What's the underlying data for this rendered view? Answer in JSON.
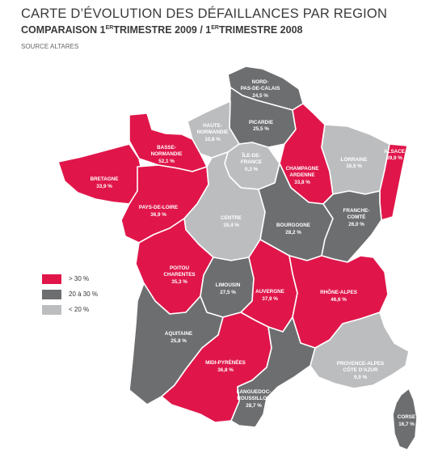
{
  "title": "CARTE D’ÉVOLUTION DES DÉFAILLANCES PAR REGION",
  "subtitle": {
    "prefix": "COMPARAISON 1",
    "sup1": "ER",
    "middle": "TRIMESTRE 2009 / 1",
    "sup2": "ER",
    "suffix": "TRIMESTRE 2008"
  },
  "source": "SOURCE ALTARES",
  "colors": {
    "high": "#e0164a",
    "mid": "#6d6e70",
    "low": "#bcbdbf",
    "border": "#ffffff"
  },
  "legend": [
    {
      "label": "> 30 %",
      "color": "#e0164a"
    },
    {
      "label": "20 à 30 %",
      "color": "#6d6e70"
    },
    {
      "label": "< 20 %",
      "color": "#bcbdbf"
    }
  ],
  "regions": {
    "nord": {
      "name1": "NORD-",
      "name2": "PAS-DE-CALAIS",
      "value": "24,5 %"
    },
    "picardie": {
      "name1": "PICARDIE",
      "value": "25,5 %"
    },
    "haute_normandie": {
      "name1": "HAUTE-",
      "name2": "NORMANDIE",
      "value": "10,8 %"
    },
    "basse_normandie": {
      "name1": "BASSE-",
      "name2": "NORMANDIE",
      "value": "52,1 %"
    },
    "bretagne": {
      "name1": "BRETAGNE",
      "value": "33,9 %"
    },
    "pays_de_loire": {
      "name1": "PAYS-DE-LOIRE",
      "value": "36,9 %"
    },
    "ile_de_france": {
      "name1": "ÎLE-DE-",
      "name2": "FRANCE",
      "value": "0,3 %"
    },
    "champagne": {
      "name1": "CHAMPAGNE",
      "name2": "ARDENNE",
      "value": "33,8 %"
    },
    "lorraine": {
      "name1": "LORRAINE",
      "value": "16,5 %"
    },
    "alsace": {
      "name1": "ALSACE",
      "value": "39,9 %"
    },
    "centre": {
      "name1": "CENTRE",
      "value": "15,4 %"
    },
    "bourgogne": {
      "name1": "BOURGOGNE",
      "value": "28,2 %"
    },
    "franche_comte": {
      "name1": "FRANCHE-",
      "name2": "COMTÉ",
      "value": "26,0 %"
    },
    "poitou": {
      "name1": "POITOU",
      "name2": "CHARENTES",
      "value": "35,3 %"
    },
    "limousin": {
      "name1": "LIMOUSIN",
      "value": "27,5 %"
    },
    "auvergne": {
      "name1": "AUVERGNE",
      "value": "37,9 %"
    },
    "rhone_alpes": {
      "name1": "RHÔNE-ALPES",
      "value": "46,6 %"
    },
    "aquitaine": {
      "name1": "AQUITAINE",
      "value": "25,8 %"
    },
    "midi_pyrenees": {
      "name1": "MIDI-PYRÉNÉES",
      "value": "36,8 %"
    },
    "languedoc": {
      "name1": "LANGUEDOC-",
      "name2": "ROUSSILLON",
      "value": "28,7 %"
    },
    "paca": {
      "name1": "PROVENCE-ALPES",
      "name2": "CÔTE D’AZUR",
      "value": "9,9 %"
    },
    "corse": {
      "name1": "CORSE",
      "value": "16,7 %"
    }
  }
}
